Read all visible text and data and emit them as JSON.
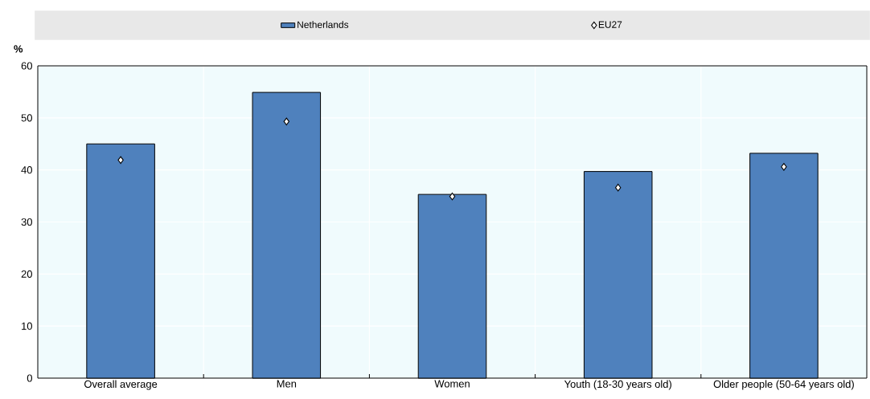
{
  "chart_data": {
    "type": "bar",
    "ylabel": "%",
    "categories": [
      "Overall average",
      "Men",
      "Women",
      "Youth (18-30 years old)",
      "Older people (50-64 years old)"
    ],
    "series": [
      {
        "name": "Netherlands",
        "color": "#4f81bd",
        "values": [
          45.0,
          54.9,
          35.3,
          39.7,
          43.2
        ]
      },
      {
        "name": "EU27",
        "type": "scatter",
        "color": "#ffffff",
        "marker": "diamond",
        "x": [
          "Overall average",
          "Men",
          "Women",
          "Youth (18-30 years old)",
          "Older people (50-64 years old)"
        ],
        "values": [
          41.9,
          49.3,
          34.9,
          36.6,
          40.6
        ]
      }
    ],
    "ylim": [
      0,
      60
    ],
    "yticks": [
      0,
      10,
      20,
      30,
      40,
      50,
      60
    ],
    "grid": true,
    "legend": "top"
  }
}
